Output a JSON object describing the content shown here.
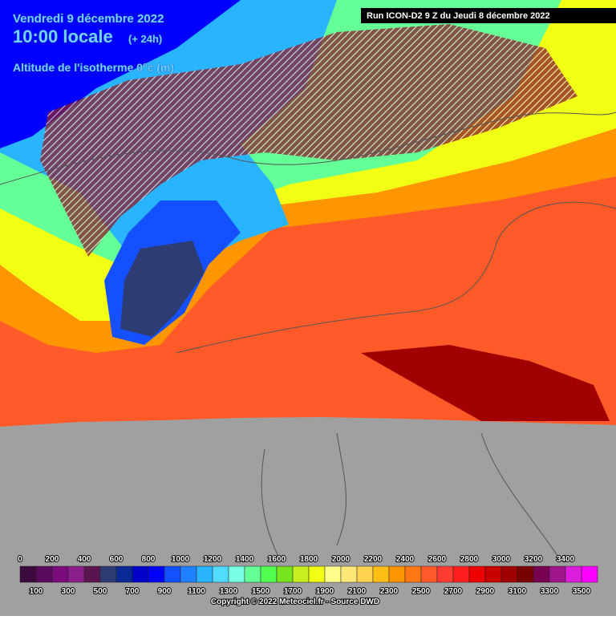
{
  "header": {
    "date": "Vendredi 9 décembre 2022",
    "time": "10:00 locale",
    "offset": "(+ 24h)",
    "variable": "Altitude de l'isotherme 0°c (m)",
    "run": "Run ICON-D2 9 Z du Jeudi 8 décembre 2022"
  },
  "legend": {
    "labels": [
      0,
      100,
      200,
      300,
      400,
      500,
      600,
      700,
      800,
      900,
      1000,
      1100,
      1200,
      1300,
      1400,
      1500,
      1600,
      1700,
      1800,
      1900,
      2000,
      2100,
      2200,
      2300,
      2400,
      2500,
      2600,
      2700,
      2800,
      2900,
      3000,
      3100,
      3200,
      3300,
      3400,
      3500
    ],
    "colors": [
      "#3c0a3c",
      "#5a0a5a",
      "#7a0a7a",
      "#8c1e8c",
      "#5a1450",
      "#2d3c73",
      "#0a2896",
      "#0000c8",
      "#0000ff",
      "#1450ff",
      "#1e82ff",
      "#28b4ff",
      "#50dcff",
      "#78ffe6",
      "#64ff96",
      "#50ff50",
      "#78e61e",
      "#c8f01e",
      "#f0ff14",
      "#ffff8c",
      "#ffe678",
      "#ffd250",
      "#ffbe14",
      "#ff9600",
      "#ff7814",
      "#ff5a28",
      "#ff3c32",
      "#ff1e1e",
      "#f00000",
      "#c80000",
      "#a00000",
      "#780000",
      "#780050",
      "#a0148c",
      "#dc1edc",
      "#ff00ff"
    ]
  },
  "footer": {
    "copyright": "Copyright © 2022 Meteociel.fr - Source DWD"
  }
}
